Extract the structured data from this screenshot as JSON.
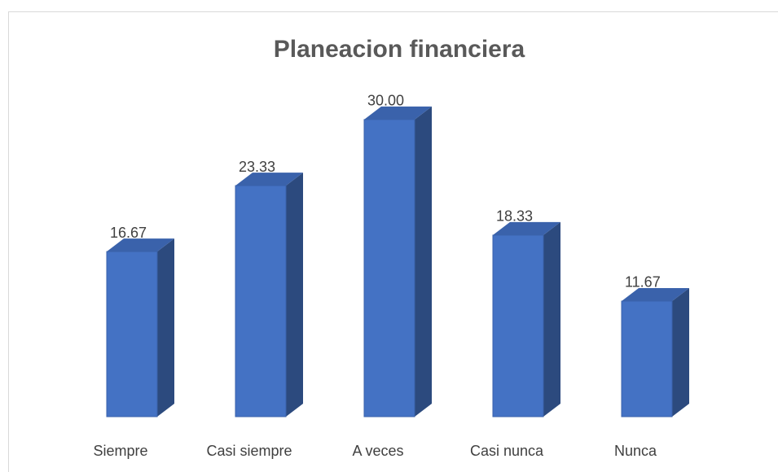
{
  "chart_data": {
    "type": "bar3d",
    "title": "Planeacion financiera",
    "categories": [
      "Siempre",
      "Casi siempre",
      "A veces",
      "Casi nunca",
      "Nunca"
    ],
    "values": [
      16.67,
      23.33,
      30.0,
      18.33,
      11.67
    ],
    "value_labels": [
      "16.67",
      "23.33",
      "30.00",
      "18.33",
      "11.67"
    ],
    "color": "#4472c4"
  }
}
